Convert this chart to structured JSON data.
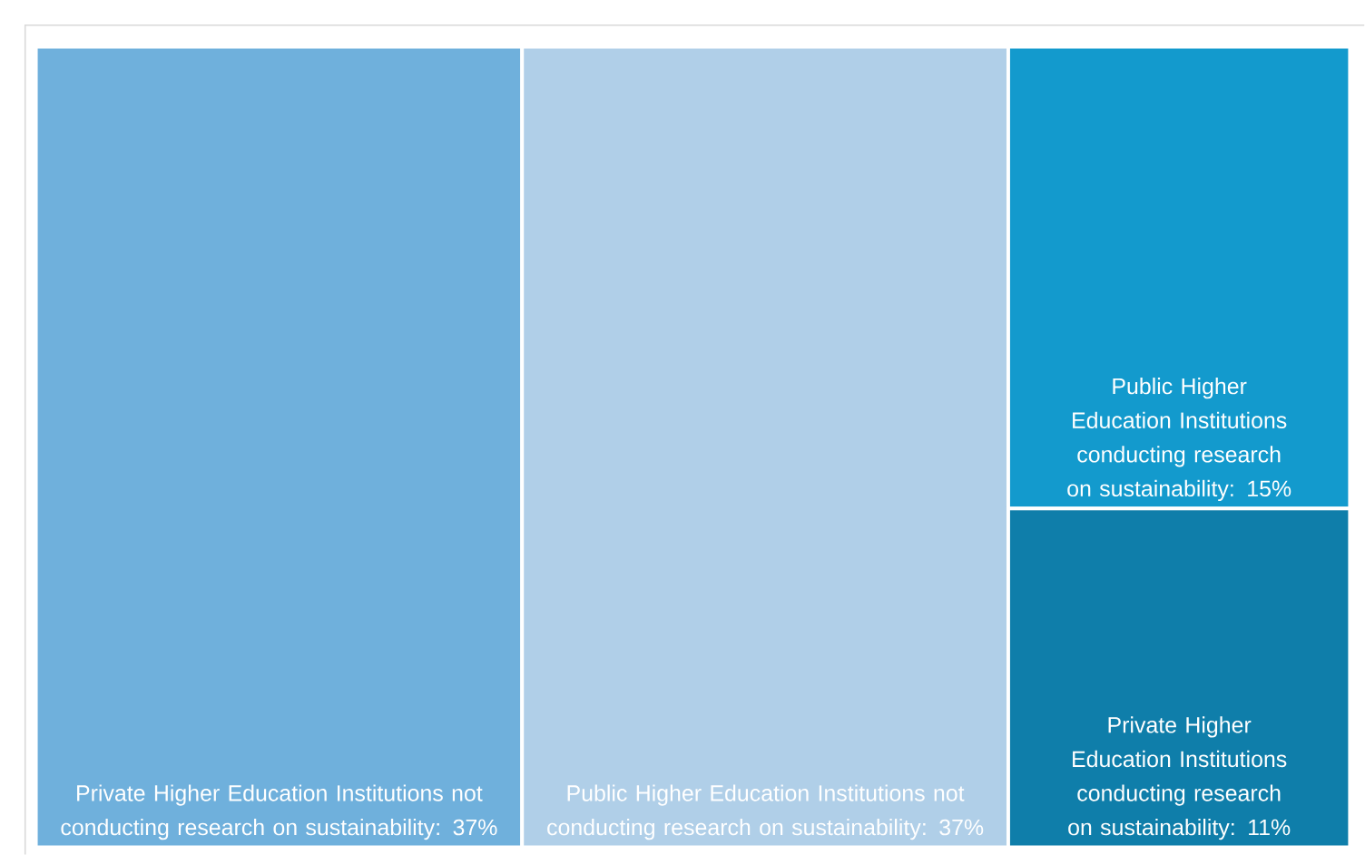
{
  "chart_data": {
    "type": "other",
    "categories": [
      "Private Higher Education Institutions not conducting research on sustainability",
      "Public Higher Education Institutions not conducting research on sustainability",
      "Public Higher Education Institutions conducting research on sustainability",
      "Private Higher Education Institutions conducting research on sustainability"
    ],
    "values": [
      37,
      37,
      15,
      11
    ],
    "value_labels": [
      ": 37%",
      ": 37%",
      ": 15%",
      ": 11%"
    ],
    "colors": [
      "#6fb0dc",
      "#b0cfe8",
      "#139acd",
      "#0f7eaa"
    ]
  }
}
